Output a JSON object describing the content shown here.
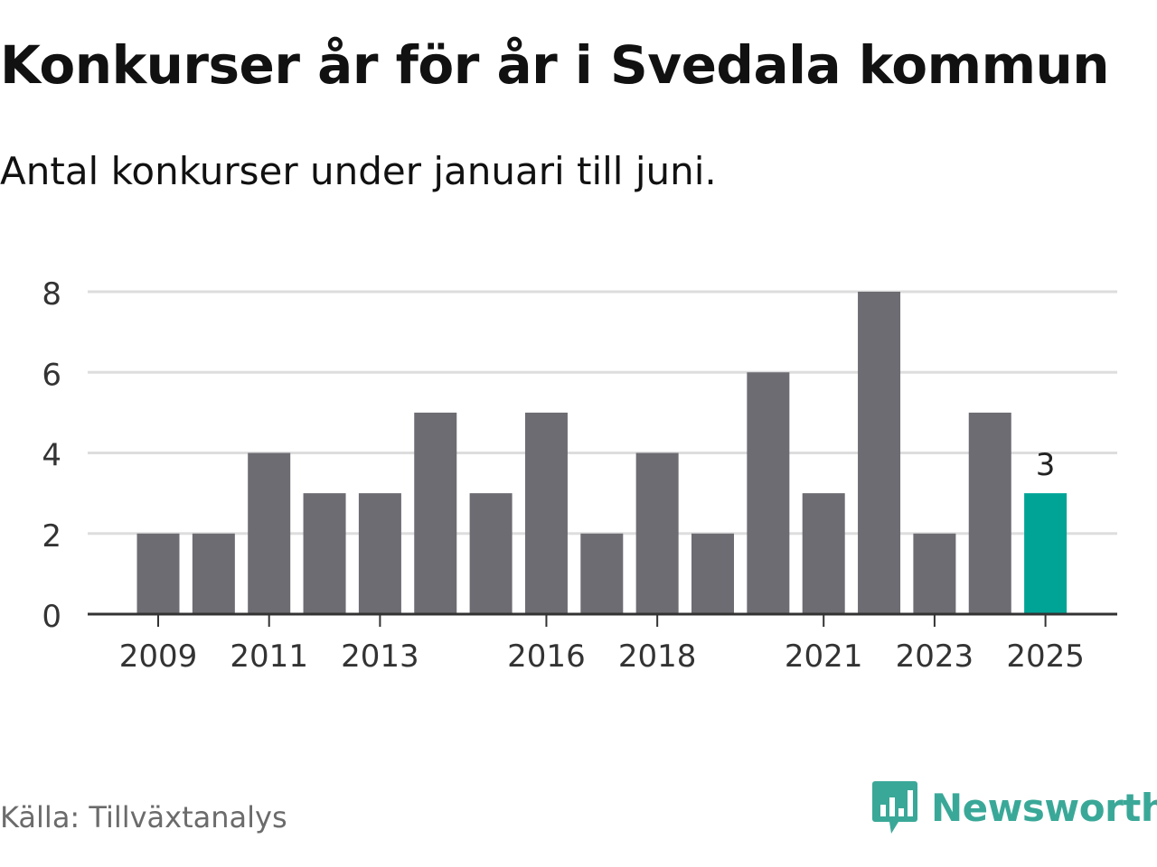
{
  "header": {
    "title": "Konkurser år för år i Svedala kommun",
    "subtitle": "Antal konkurser under januari till juni."
  },
  "footer": {
    "source": "Källa: Tillväxtanalys",
    "brand": "Newsworthy",
    "brand_icon": "bar-chart-speech-bubble-icon"
  },
  "colors": {
    "bar": "#6d6c72",
    "highlight": "#00a497",
    "grid": "#dddddd",
    "axis": "#333333",
    "brand": "#3aa898"
  },
  "chart_data": {
    "type": "bar",
    "categories": [
      "2009",
      "2010",
      "2011",
      "2012",
      "2013",
      "2014",
      "2015",
      "2016",
      "2017",
      "2018",
      "2019",
      "2020",
      "2021",
      "2022",
      "2023",
      "2024",
      "2025"
    ],
    "values": [
      2,
      2,
      4,
      3,
      3,
      5,
      3,
      5,
      2,
      4,
      2,
      6,
      3,
      8,
      2,
      5,
      3
    ],
    "x_tick_labels": [
      "2009",
      "2011",
      "2013",
      "2016",
      "2018",
      "2021",
      "2023",
      "2025"
    ],
    "y_ticks": [
      0,
      2,
      4,
      6,
      8
    ],
    "ylim": [
      0,
      8
    ],
    "highlight_category": "2025",
    "data_labels": [
      {
        "category": "2025",
        "text": "3"
      }
    ],
    "grid": true,
    "xlabel": "",
    "ylabel": ""
  }
}
